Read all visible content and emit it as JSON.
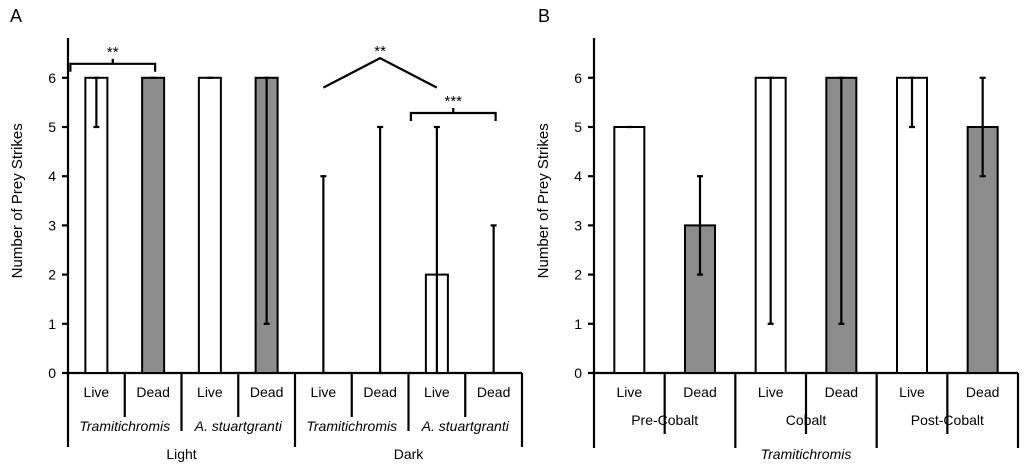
{
  "chart_data": [
    {
      "type": "bar",
      "panel_label": "A",
      "ylabel": "Number of Prey Strikes",
      "ylim": [
        0,
        7
      ],
      "yticks": [
        0,
        1,
        2,
        3,
        4,
        5,
        6
      ],
      "grid": false,
      "bar_colors": {
        "Live": "#ffffff",
        "Dead": "#8c8c8c"
      },
      "categories": [
        "Live",
        "Dead",
        "Live",
        "Dead",
        "Live",
        "Dead",
        "Live",
        "Dead"
      ],
      "groups": [
        {
          "label": "Tramitichromis",
          "italic": true
        },
        {
          "label": "A. stuartgranti",
          "italic": true
        },
        {
          "label": "Tramitichromis",
          "italic": true
        },
        {
          "label": "A. stuartgranti",
          "italic": true
        }
      ],
      "supergroups": [
        {
          "label": "Light"
        },
        {
          "label": "Dark"
        }
      ],
      "series": [
        {
          "values": [
            6,
            6,
            6,
            6,
            0,
            0,
            2,
            0
          ],
          "err_low": [
            5,
            6,
            6,
            1,
            0,
            0,
            0,
            0
          ],
          "err_high": [
            6,
            6,
            6,
            6,
            4,
            5,
            5,
            3
          ]
        }
      ],
      "annotations": [
        {
          "text": "**",
          "type": "bracket",
          "from": 0,
          "to": 1
        },
        {
          "text": "**",
          "type": "angle",
          "from": 4,
          "to": 6
        },
        {
          "text": "***",
          "type": "bracket",
          "from": 6,
          "to": 7
        }
      ]
    },
    {
      "type": "bar",
      "panel_label": "B",
      "ylabel": "Number of Prey Strikes",
      "ylim": [
        0,
        7
      ],
      "yticks": [
        0,
        1,
        2,
        3,
        4,
        5,
        6
      ],
      "grid": false,
      "bar_colors": {
        "Live": "#ffffff",
        "Dead": "#8c8c8c"
      },
      "categories": [
        "Live",
        "Dead",
        "Live",
        "Dead",
        "Live",
        "Dead"
      ],
      "groups": [
        {
          "label": "Pre-Cobalt",
          "italic": false
        },
        {
          "label": "Cobalt",
          "italic": false
        },
        {
          "label": "Post-Cobalt",
          "italic": false
        }
      ],
      "supergroups": [
        {
          "label": "Tramitichromis",
          "italic": true
        }
      ],
      "series": [
        {
          "values": [
            5,
            3,
            6,
            6,
            6,
            5
          ],
          "err_low": [
            5,
            2,
            1,
            1,
            5,
            4
          ],
          "err_high": [
            5,
            4,
            6,
            6,
            6,
            6
          ]
        }
      ],
      "annotations": []
    }
  ]
}
